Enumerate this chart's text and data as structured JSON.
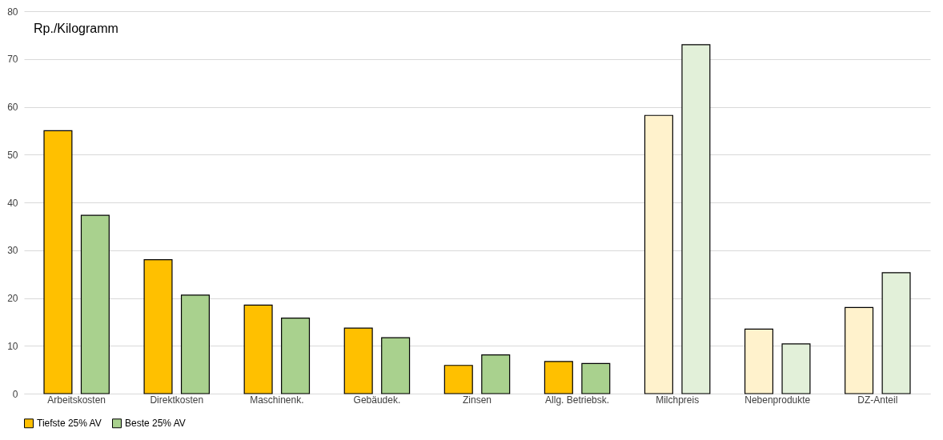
{
  "chart_data": {
    "type": "bar",
    "ylabel": "Rp./Kilogramm",
    "categories": [
      "Arbeitskosten",
      "Direktkosten",
      "Maschinenk.",
      "Gebäudek.",
      "Zinsen",
      "Allg. Betriebsk.",
      "Milchpreis",
      "Nebenprodukte",
      "DZ-Anteil"
    ],
    "series": [
      {
        "name": "Tiefste 25% AV",
        "color": "#ffc000",
        "colors": [
          "#ffc000",
          "#ffc000",
          "#ffc000",
          "#ffc000",
          "#ffc000",
          "#ffc000",
          "#fff2cc",
          "#fff2cc",
          "#fff2cc"
        ],
        "values": [
          55,
          28,
          18.5,
          13.7,
          5.9,
          6.7,
          58.2,
          13.5,
          18
        ]
      },
      {
        "name": "Beste 25% AV",
        "color": "#a9d18e",
        "colors": [
          "#a9d18e",
          "#a9d18e",
          "#a9d18e",
          "#a9d18e",
          "#a9d18e",
          "#a9d18e",
          "#e2f0d9",
          "#e2f0d9",
          "#e2f0d9"
        ],
        "values": [
          37.3,
          20.6,
          15.8,
          11.7,
          8.1,
          6.3,
          73,
          10.4,
          25.3
        ]
      }
    ],
    "ylim": [
      0,
      80
    ],
    "yticks": [
      0,
      10,
      20,
      30,
      40,
      50,
      60,
      70,
      80
    ],
    "grid": "y",
    "legend": "bottom"
  }
}
